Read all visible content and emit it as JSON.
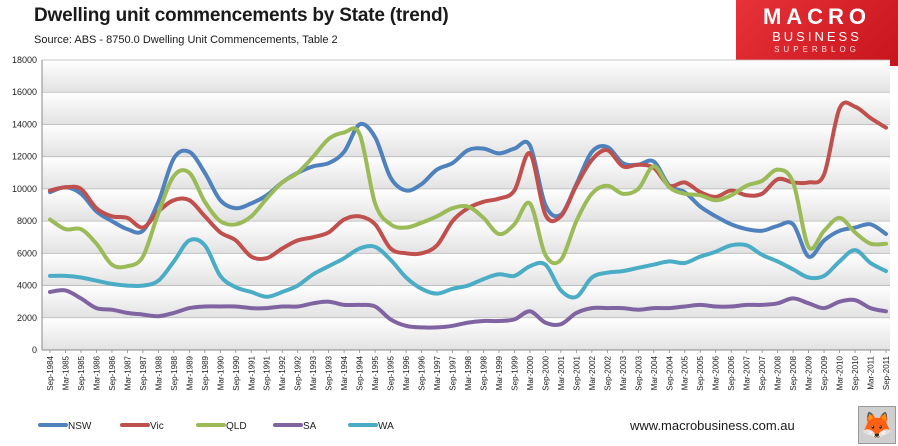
{
  "header": {
    "title": "Dwelling unit commencements by State (trend)",
    "subtitle": "Source: ABS - 8750.0 Dwelling Unit Commencements, Table 2"
  },
  "logo": {
    "line1": "MACRO",
    "line2": "BUSINESS",
    "line3": "SUPERBLOG"
  },
  "footer": {
    "website": "www.macrobusiness.com.au",
    "fox_icon": "fox-icon"
  },
  "chart_data": {
    "type": "line",
    "title": "Dwelling unit commencements by State (trend)",
    "xlabel": "",
    "ylabel": "",
    "ylim": [
      0,
      18000
    ],
    "yticks": [
      0,
      2000,
      4000,
      6000,
      8000,
      10000,
      12000,
      14000,
      16000,
      18000
    ],
    "ytick_labels": [
      "0",
      "2000",
      "4000",
      "6000",
      "8000",
      "10000",
      "12000",
      "14000",
      "16000",
      "18000"
    ],
    "grid": true,
    "legend_position": "bottom-left",
    "categories": [
      "Sep-1984",
      "Mar-1985",
      "Sep-1985",
      "Mar-1986",
      "Sep-1986",
      "Mar-1987",
      "Sep-1987",
      "Mar-1988",
      "Sep-1988",
      "Mar-1989",
      "Sep-1989",
      "Mar-1990",
      "Sep-1990",
      "Mar-1991",
      "Sep-1991",
      "Mar-1992",
      "Sep-1992",
      "Mar-1993",
      "Sep-1993",
      "Mar-1994",
      "Sep-1994",
      "Mar-1995",
      "Sep-1995",
      "Mar-1996",
      "Sep-1996",
      "Mar-1997",
      "Sep-1997",
      "Mar-1998",
      "Sep-1998",
      "Mar-1999",
      "Sep-1999",
      "Mar-2000",
      "Sep-2000",
      "Mar-2001",
      "Sep-2001",
      "Mar-2002",
      "Sep-2002",
      "Mar-2003",
      "Sep-2003",
      "Mar-2004",
      "Sep-2004",
      "Mar-2005",
      "Sep-2005",
      "Mar-2006",
      "Sep-2006",
      "Mar-2007",
      "Sep-2007",
      "Mar-2008",
      "Sep-2008",
      "Mar-2009",
      "Sep-2009",
      "Mar-2010",
      "Sep-2010",
      "Mar-2011",
      "Sep-2011"
    ],
    "series": [
      {
        "name": "NSW",
        "color": "#4f81bd",
        "values": [
          9800,
          10100,
          9700,
          8600,
          8000,
          7500,
          7400,
          9200,
          11900,
          12300,
          11000,
          9300,
          8800,
          9100,
          9600,
          10400,
          11000,
          11400,
          11600,
          12300,
          14000,
          13200,
          10700,
          9900,
          10300,
          11200,
          11600,
          12400,
          12500,
          12200,
          12500,
          12700,
          9000,
          8400,
          10300,
          12300,
          12600,
          11600,
          11500,
          11700,
          10200,
          9800,
          8900,
          8300,
          7800,
          7500,
          7400,
          7700,
          7800,
          5800,
          6800,
          7400,
          7600,
          7800,
          7200
        ]
      },
      {
        "name": "Vic",
        "color": "#c0504d",
        "values": [
          9900,
          10100,
          10000,
          8800,
          8300,
          8200,
          7600,
          8600,
          9300,
          9300,
          8300,
          7300,
          6800,
          5800,
          5700,
          6300,
          6800,
          7000,
          7300,
          8100,
          8300,
          7800,
          6300,
          6000,
          6000,
          6500,
          8000,
          8800,
          9200,
          9400,
          9900,
          12200,
          8400,
          8300,
          10200,
          11800,
          12400,
          11400,
          11500,
          11300,
          10200,
          10400,
          9800,
          9500,
          9900,
          9600,
          9700,
          10600,
          10400,
          10400,
          10900,
          15000,
          15100,
          14400,
          13800
        ]
      },
      {
        "name": "QLD",
        "color": "#9bbb59",
        "values": [
          8100,
          7500,
          7500,
          6600,
          5300,
          5200,
          5800,
          8500,
          10800,
          11000,
          9200,
          8000,
          7800,
          8300,
          9400,
          10400,
          11000,
          12000,
          13100,
          13500,
          13400,
          9100,
          7800,
          7600,
          7900,
          8300,
          8800,
          8900,
          8200,
          7200,
          7800,
          9100,
          5900,
          5600,
          8000,
          9700,
          10200,
          9700,
          10000,
          11400,
          10100,
          9700,
          9600,
          9300,
          9600,
          10200,
          10500,
          11200,
          10400,
          6400,
          7400,
          8200,
          7300,
          6600,
          6600
        ]
      },
      {
        "name": "SA",
        "color": "#8064a2",
        "values": [
          3600,
          3700,
          3200,
          2600,
          2500,
          2300,
          2200,
          2100,
          2300,
          2600,
          2700,
          2700,
          2700,
          2600,
          2600,
          2700,
          2700,
          2900,
          3000,
          2800,
          2800,
          2700,
          1900,
          1500,
          1400,
          1400,
          1500,
          1700,
          1800,
          1800,
          1900,
          2400,
          1700,
          1600,
          2300,
          2600,
          2600,
          2600,
          2500,
          2600,
          2600,
          2700,
          2800,
          2700,
          2700,
          2800,
          2800,
          2900,
          3200,
          2900,
          2600,
          3000,
          3100,
          2600,
          2400
        ]
      },
      {
        "name": "WA",
        "color": "#4bacc6",
        "values": [
          4600,
          4600,
          4500,
          4300,
          4100,
          4000,
          4000,
          4300,
          5500,
          6800,
          6500,
          4600,
          3900,
          3600,
          3300,
          3600,
          4000,
          4700,
          5200,
          5700,
          6300,
          6400,
          5600,
          4500,
          3800,
          3500,
          3800,
          4000,
          4400,
          4700,
          4600,
          5200,
          5300,
          3700,
          3300,
          4500,
          4800,
          4900,
          5100,
          5300,
          5500,
          5400,
          5800,
          6100,
          6500,
          6500,
          5900,
          5500,
          5000,
          4500,
          4600,
          5500,
          6200,
          5400,
          4900
        ]
      }
    ]
  }
}
